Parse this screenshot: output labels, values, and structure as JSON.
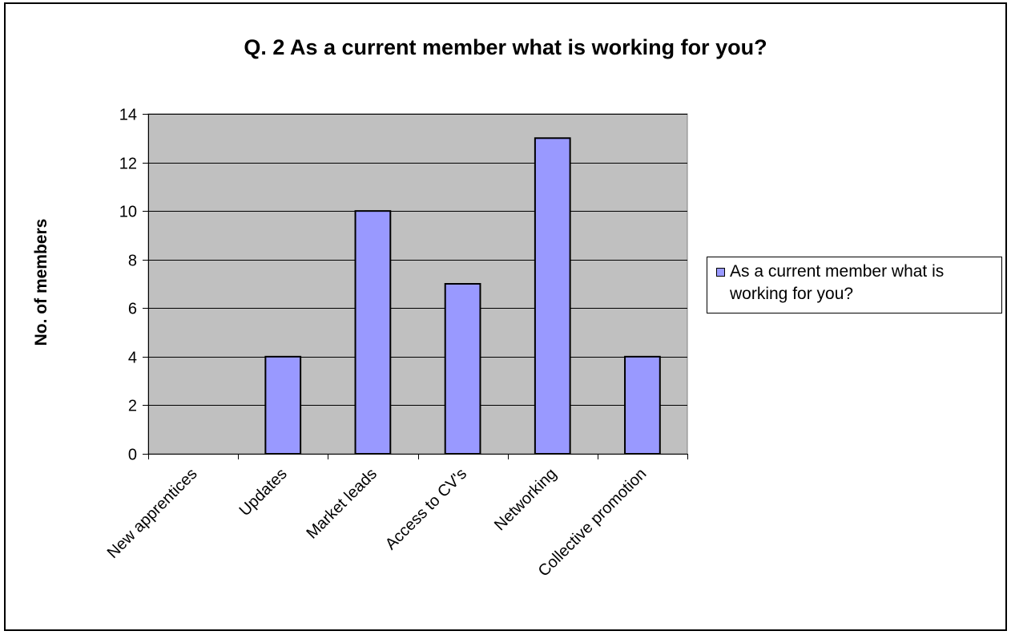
{
  "chart_data": {
    "type": "bar",
    "title": "Q. 2 As a current member what is working for you?",
    "xlabel": "",
    "ylabel": "No. of members",
    "categories": [
      "New apprentices",
      "Updates",
      "Market leads",
      "Access to CV's",
      "Networking",
      "Collective promotion"
    ],
    "series": [
      {
        "name": "As a current member what is working for you?",
        "values": [
          0,
          4,
          10,
          7,
          13,
          4
        ]
      }
    ],
    "ylim": [
      0,
      14
    ],
    "yticks": [
      "0",
      "2",
      "4",
      "6",
      "8",
      "10",
      "12",
      "14"
    ],
    "grid": true,
    "legend_position": "right",
    "colors": {
      "bar_fill": "#9999ff",
      "plot_background": "#c0c0c0",
      "grid": "#000000"
    }
  }
}
